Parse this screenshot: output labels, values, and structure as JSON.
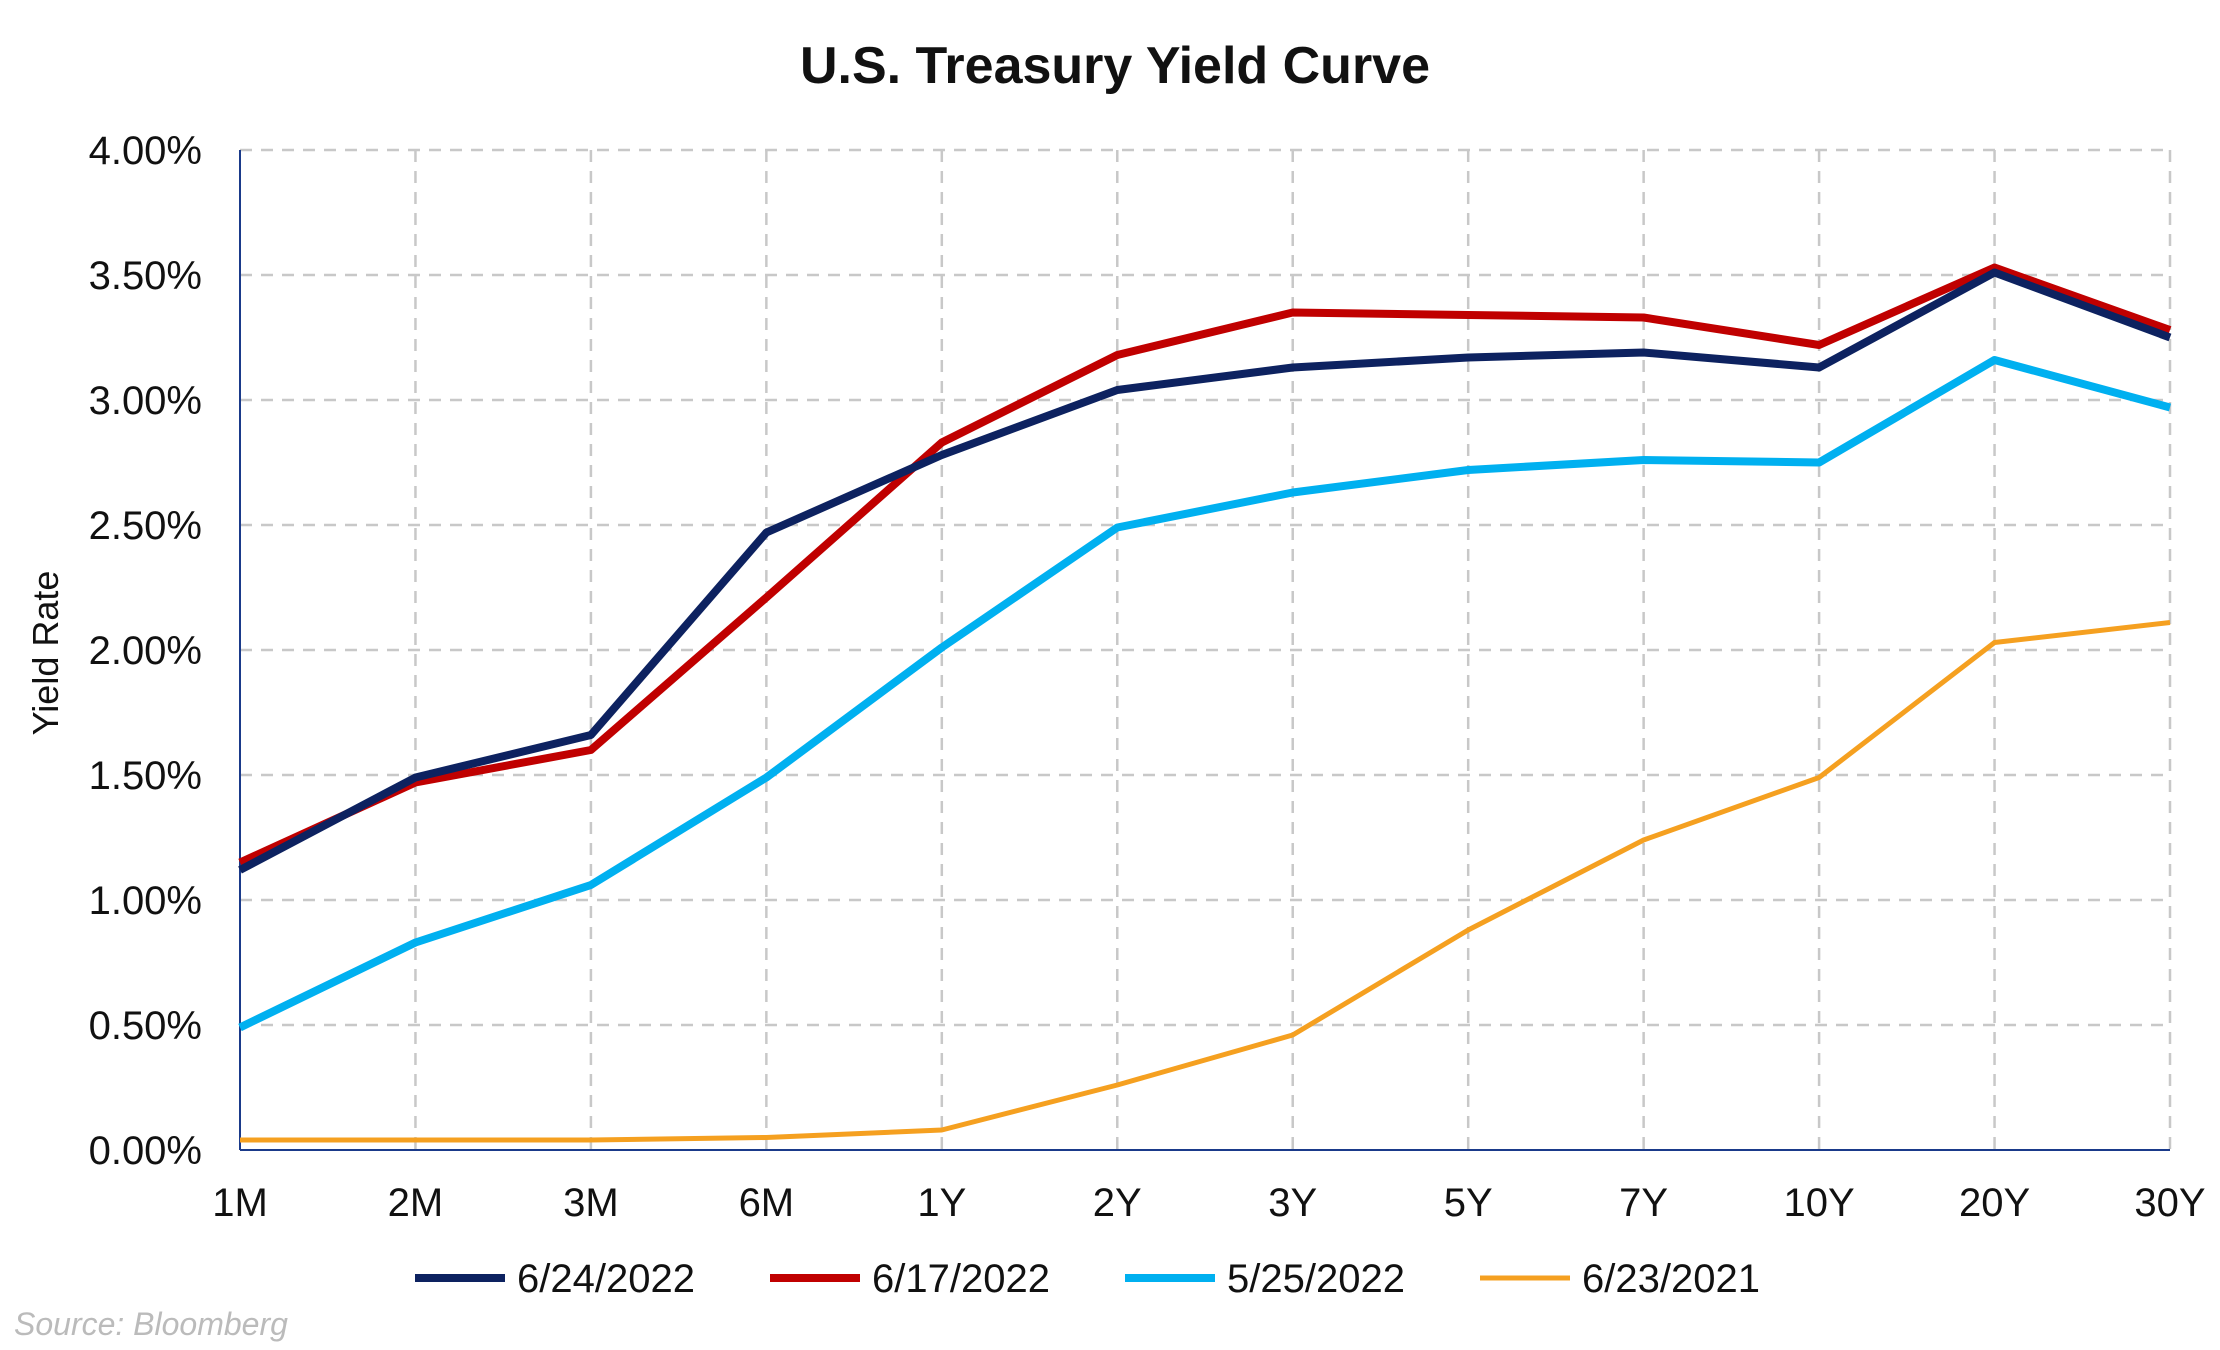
{
  "chart_data": {
    "type": "line",
    "title": "U.S. Treasury Yield Curve",
    "xlabel": "",
    "ylabel": "Yield Rate",
    "categories": [
      "1M",
      "2M",
      "3M",
      "6M",
      "1Y",
      "2Y",
      "3Y",
      "5Y",
      "7Y",
      "10Y",
      "20Y",
      "30Y"
    ],
    "ylim": [
      0,
      4
    ],
    "yticks": [
      0,
      0.5,
      1,
      1.5,
      2,
      2.5,
      3,
      3.5,
      4
    ],
    "ytick_labels": [
      "0.00%",
      "0.50%",
      "1.00%",
      "1.50%",
      "2.00%",
      "2.50%",
      "3.00%",
      "3.50%",
      "4.00%"
    ],
    "y_unit": "%",
    "grid": true,
    "legend_position": "bottom",
    "series": [
      {
        "name": "6/24/2022",
        "color": "#0d2260",
        "values": [
          1.12,
          1.49,
          1.66,
          2.47,
          2.78,
          3.04,
          3.13,
          3.17,
          3.19,
          3.13,
          3.51,
          3.25
        ]
      },
      {
        "name": "6/17/2022",
        "color": "#c00000",
        "values": [
          1.15,
          1.47,
          1.6,
          2.21,
          2.83,
          3.18,
          3.35,
          3.34,
          3.33,
          3.22,
          3.53,
          3.28
        ]
      },
      {
        "name": "5/25/2022",
        "color": "#00b0f0",
        "values": [
          0.49,
          0.83,
          1.06,
          1.49,
          2.01,
          2.49,
          2.63,
          2.72,
          2.76,
          2.75,
          3.16,
          2.97
        ]
      },
      {
        "name": "6/23/2021",
        "color": "#f5a020",
        "values": [
          0.04,
          0.04,
          0.04,
          0.05,
          0.08,
          0.26,
          0.46,
          0.88,
          1.24,
          1.49,
          2.03,
          2.11
        ]
      }
    ]
  },
  "source_note": "Source: Bloomberg"
}
